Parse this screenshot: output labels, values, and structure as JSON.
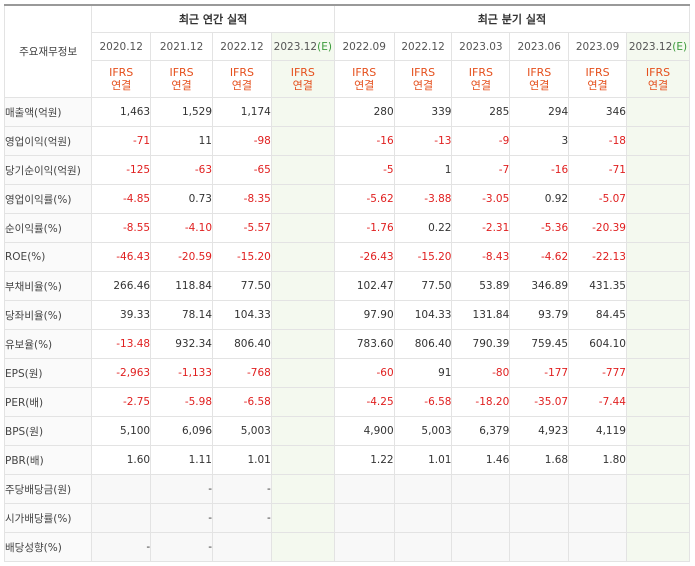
{
  "header": {
    "annual_group": "최근 연간 실적",
    "quarter_group": "최근 분기 실적",
    "row_label_title": "주요재무정보",
    "estimate_mark": "(E)"
  },
  "periods": {
    "annual": [
      "2020.12",
      "2021.12",
      "2022.12",
      "2023.12"
    ],
    "quarter": [
      "2022.09",
      "2022.12",
      "2023.03",
      "2023.06",
      "2023.09",
      "2023.12"
    ]
  },
  "standard": {
    "line1": "IFRS",
    "line2": "연결"
  },
  "rows": [
    {
      "label": "매출액(억원)",
      "values": [
        "1,463",
        "1,529",
        "1,174",
        "",
        "280",
        "339",
        "285",
        "294",
        "346",
        ""
      ]
    },
    {
      "label": "영업이익(억원)",
      "values": [
        "-71",
        "11",
        "-98",
        "",
        "-16",
        "-13",
        "-9",
        "3",
        "-18",
        ""
      ]
    },
    {
      "label": "당기순이익(억원)",
      "values": [
        "-125",
        "-63",
        "-65",
        "",
        "-5",
        "1",
        "-7",
        "-16",
        "-71",
        ""
      ]
    },
    {
      "label": "영업이익률(%)",
      "values": [
        "-4.85",
        "0.73",
        "-8.35",
        "",
        "-5.62",
        "-3.88",
        "-3.05",
        "0.92",
        "-5.07",
        ""
      ]
    },
    {
      "label": "순이익률(%)",
      "values": [
        "-8.55",
        "-4.10",
        "-5.57",
        "",
        "-1.76",
        "0.22",
        "-2.31",
        "-5.36",
        "-20.39",
        ""
      ]
    },
    {
      "label": "ROE(%)",
      "values": [
        "-46.43",
        "-20.59",
        "-15.20",
        "",
        "-26.43",
        "-15.20",
        "-8.43",
        "-4.62",
        "-22.13",
        ""
      ]
    },
    {
      "label": "부채비율(%)",
      "values": [
        "266.46",
        "118.84",
        "77.50",
        "",
        "102.47",
        "77.50",
        "53.89",
        "346.89",
        "431.35",
        ""
      ]
    },
    {
      "label": "당좌비율(%)",
      "values": [
        "39.33",
        "78.14",
        "104.33",
        "",
        "97.90",
        "104.33",
        "131.84",
        "93.79",
        "84.45",
        ""
      ]
    },
    {
      "label": "유보율(%)",
      "values": [
        "-13.48",
        "932.34",
        "806.40",
        "",
        "783.60",
        "806.40",
        "790.39",
        "759.45",
        "604.10",
        ""
      ]
    },
    {
      "label": "EPS(원)",
      "values": [
        "-2,963",
        "-1,133",
        "-768",
        "",
        "-60",
        "91",
        "-80",
        "-177",
        "-777",
        ""
      ]
    },
    {
      "label": "PER(배)",
      "values": [
        "-2.75",
        "-5.98",
        "-6.58",
        "",
        "-4.25",
        "-6.58",
        "-18.20",
        "-35.07",
        "-7.44",
        ""
      ]
    },
    {
      "label": "BPS(원)",
      "values": [
        "5,100",
        "6,096",
        "5,003",
        "",
        "4,900",
        "5,003",
        "6,379",
        "4,923",
        "4,119",
        ""
      ]
    },
    {
      "label": "PBR(배)",
      "values": [
        "1.60",
        "1.11",
        "1.01",
        "",
        "1.22",
        "1.01",
        "1.46",
        "1.68",
        "1.80",
        ""
      ]
    },
    {
      "label": "주당배당금(원)",
      "values": [
        "",
        "-",
        "-",
        "",
        "",
        "",
        "",
        "",
        "",
        ""
      ]
    },
    {
      "label": "시가배당률(%)",
      "values": [
        "",
        "-",
        "-",
        "",
        "",
        "",
        "",
        "",
        "",
        ""
      ]
    },
    {
      "label": "배당성향(%)",
      "values": [
        "-",
        "-",
        "",
        "",
        "",
        "",
        "",
        "",
        "",
        ""
      ]
    }
  ]
}
